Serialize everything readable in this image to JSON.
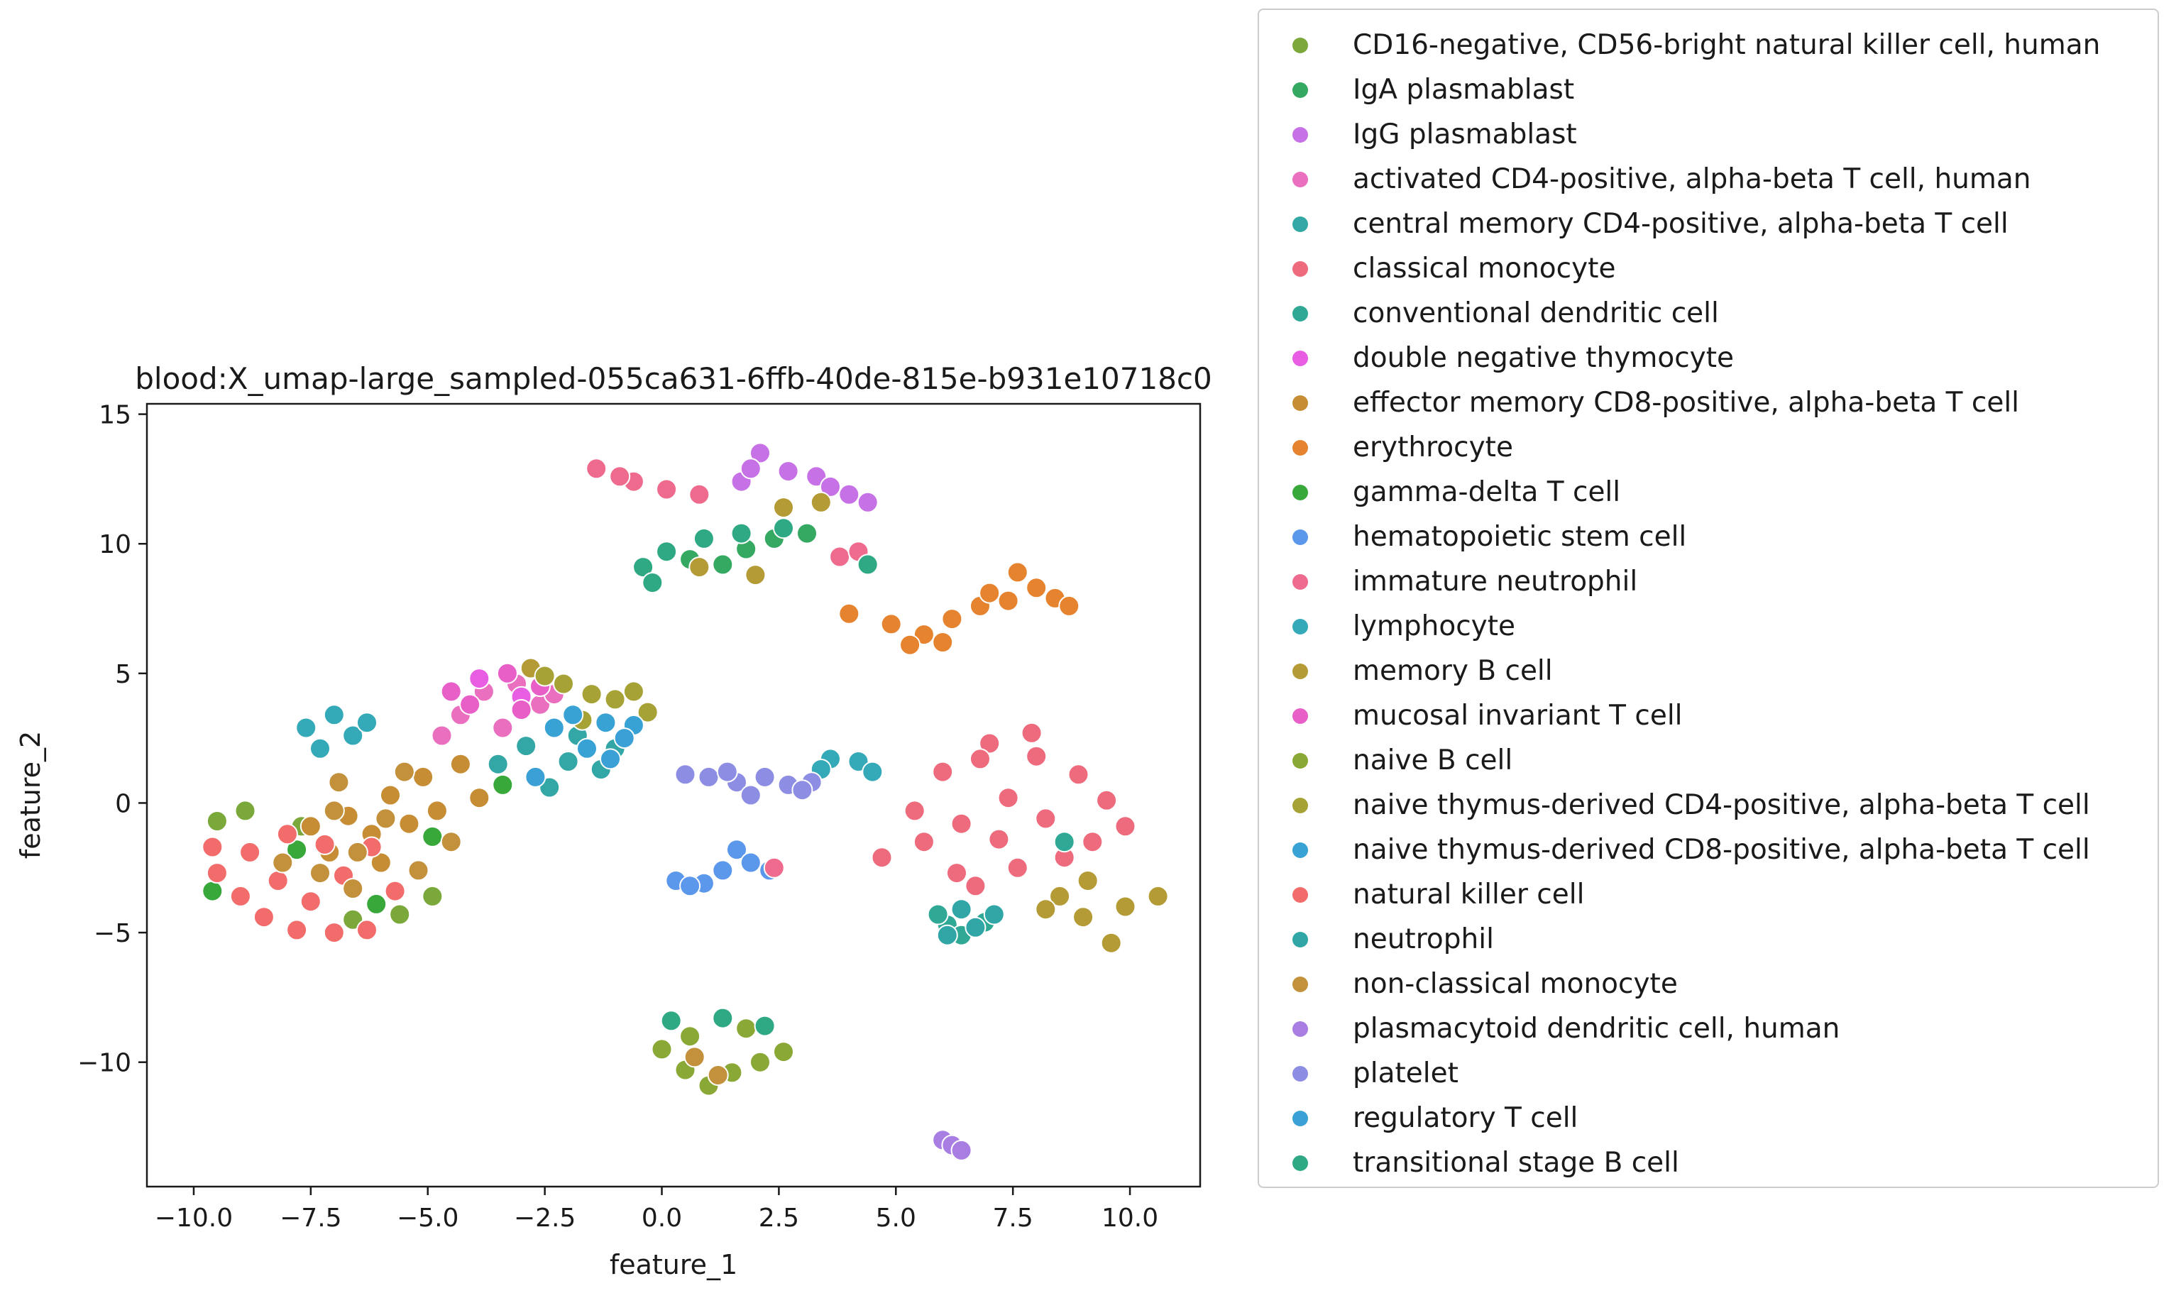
{
  "chart_data": {
    "type": "scatter",
    "title": "blood:X_umap-large_sampled-055ca631-6ffb-40de-815e-b931e10718c0",
    "xlabel": "feature_1",
    "ylabel": "feature_2",
    "xlim": [
      -11,
      11.5
    ],
    "ylim": [
      -14.8,
      15.4
    ],
    "xticks": [
      -10.0,
      -7.5,
      -5.0,
      -2.5,
      0.0,
      2.5,
      5.0,
      7.5,
      10.0
    ],
    "xtick_labels": [
      "−10.0",
      "−7.5",
      "−5.0",
      "−2.5",
      "0.0",
      "2.5",
      "5.0",
      "7.5",
      "10.0"
    ],
    "yticks": [
      -10,
      -5,
      0,
      5,
      10,
      15
    ],
    "ytick_labels": [
      "−10",
      "−5",
      "0",
      "5",
      "10",
      "15"
    ],
    "grid": false,
    "legend_position": "outside-right",
    "series": [
      {
        "name": "CD16-negative, CD56-bright natural killer cell, human",
        "color": "#7aa83a",
        "points": [
          [
            -9.5,
            -0.7
          ],
          [
            -8.9,
            -0.3
          ],
          [
            -7.7,
            -0.9
          ],
          [
            -5.6,
            -4.3
          ],
          [
            -4.9,
            -3.6
          ],
          [
            -6.6,
            -4.5
          ]
        ]
      },
      {
        "name": "IgA plasmablast",
        "color": "#35a862",
        "points": [
          [
            0.6,
            9.4
          ],
          [
            1.3,
            9.2
          ],
          [
            1.8,
            9.8
          ],
          [
            2.4,
            10.2
          ],
          [
            3.1,
            10.4
          ]
        ]
      },
      {
        "name": "IgG plasmablast",
        "color": "#c771e6",
        "points": [
          [
            1.7,
            12.4
          ],
          [
            2.1,
            13.5
          ],
          [
            2.7,
            12.8
          ],
          [
            3.3,
            12.6
          ],
          [
            4.0,
            11.9
          ],
          [
            4.4,
            11.6
          ],
          [
            3.6,
            12.2
          ],
          [
            1.9,
            12.9
          ]
        ]
      },
      {
        "name": "activated CD4-positive, alpha-beta T cell, human",
        "color": "#ea6fbf",
        "points": [
          [
            -3.8,
            4.3
          ],
          [
            -3.1,
            4.6
          ],
          [
            -2.6,
            3.8
          ],
          [
            -4.3,
            3.4
          ],
          [
            -3.4,
            2.9
          ],
          [
            -2.3,
            4.2
          ],
          [
            -4.7,
            2.6
          ]
        ]
      },
      {
        "name": "central memory CD4-positive, alpha-beta T cell",
        "color": "#33a7a6",
        "points": [
          [
            -2.9,
            2.2
          ],
          [
            -2.0,
            1.6
          ],
          [
            -1.3,
            1.3
          ],
          [
            -2.4,
            0.6
          ],
          [
            -1.8,
            2.6
          ],
          [
            -3.5,
            1.5
          ],
          [
            -1.0,
            2.1
          ]
        ]
      },
      {
        "name": "classical monocyte",
        "color": "#ee6b7d",
        "points": [
          [
            6.0,
            1.2
          ],
          [
            7.0,
            2.3
          ],
          [
            8.0,
            1.8
          ],
          [
            8.9,
            1.1
          ],
          [
            9.5,
            0.1
          ],
          [
            7.4,
            0.2
          ],
          [
            6.4,
            -0.8
          ],
          [
            5.6,
            -1.5
          ],
          [
            6.3,
            -2.7
          ],
          [
            7.2,
            -1.4
          ],
          [
            8.2,
            -0.6
          ],
          [
            9.2,
            -1.5
          ],
          [
            5.4,
            -0.3
          ],
          [
            7.9,
            2.7
          ],
          [
            6.7,
            -3.2
          ],
          [
            8.6,
            -2.1
          ],
          [
            4.7,
            -2.1
          ],
          [
            9.9,
            -0.9
          ],
          [
            6.8,
            1.7
          ],
          [
            7.6,
            -2.5
          ]
        ]
      },
      {
        "name": "conventional dendritic cell",
        "color": "#2fa996",
        "points": [
          [
            6.1,
            -4.7
          ],
          [
            6.4,
            -5.1
          ],
          [
            6.9,
            -4.6
          ],
          [
            5.9,
            -4.3
          ],
          [
            8.6,
            -1.5
          ]
        ]
      },
      {
        "name": "double negative thymocyte",
        "color": "#e85ee3",
        "points": [
          [
            -3.9,
            4.8
          ],
          [
            -3.0,
            4.1
          ]
        ]
      },
      {
        "name": "effector memory CD8-positive, alpha-beta T cell",
        "color": "#c68d34",
        "points": [
          [
            -6.7,
            -0.5
          ],
          [
            -5.8,
            0.3
          ],
          [
            -5.1,
            1.0
          ],
          [
            -4.3,
            1.5
          ],
          [
            -6.2,
            -1.2
          ],
          [
            -5.4,
            -0.8
          ],
          [
            -7.1,
            -1.9
          ],
          [
            -4.8,
            -0.3
          ],
          [
            -6.0,
            -2.3
          ],
          [
            -3.9,
            0.2
          ],
          [
            -7.5,
            -0.9
          ]
        ]
      },
      {
        "name": "erythrocyte",
        "color": "#e5832f",
        "points": [
          [
            4.0,
            7.3
          ],
          [
            4.9,
            6.9
          ],
          [
            5.6,
            6.5
          ],
          [
            6.2,
            7.1
          ],
          [
            6.8,
            7.6
          ],
          [
            7.4,
            7.8
          ],
          [
            8.0,
            8.3
          ],
          [
            7.6,
            8.9
          ],
          [
            8.4,
            7.9
          ],
          [
            7.0,
            8.1
          ],
          [
            5.3,
            6.1
          ],
          [
            6.0,
            6.2
          ],
          [
            8.7,
            7.6
          ]
        ]
      },
      {
        "name": "gamma-delta T cell",
        "color": "#38a83a",
        "points": [
          [
            -7.8,
            -1.8
          ],
          [
            -6.1,
            -3.9
          ],
          [
            -4.9,
            -1.3
          ],
          [
            -3.4,
            0.7
          ],
          [
            -9.6,
            -3.4
          ]
        ]
      },
      {
        "name": "hematopoietic stem cell",
        "color": "#5b97ea",
        "points": [
          [
            0.3,
            -3.0
          ],
          [
            0.9,
            -3.1
          ],
          [
            1.3,
            -2.6
          ],
          [
            1.6,
            -1.8
          ],
          [
            1.9,
            -2.3
          ],
          [
            2.3,
            -2.6
          ],
          [
            0.6,
            -3.2
          ]
        ]
      },
      {
        "name": "immature neutrophil",
        "color": "#ef6b8e",
        "points": [
          [
            -1.4,
            12.9
          ],
          [
            -0.6,
            12.4
          ],
          [
            0.1,
            12.1
          ],
          [
            0.8,
            11.9
          ],
          [
            -0.9,
            12.6
          ],
          [
            2.4,
            -2.5
          ],
          [
            3.8,
            9.5
          ],
          [
            4.2,
            9.7
          ]
        ]
      },
      {
        "name": "lymphocyte",
        "color": "#34a9b7",
        "points": [
          [
            -7.6,
            2.9
          ],
          [
            -7.0,
            3.4
          ],
          [
            -6.6,
            2.6
          ],
          [
            -7.3,
            2.1
          ],
          [
            -6.3,
            3.1
          ],
          [
            3.6,
            1.7
          ],
          [
            4.2,
            1.6
          ],
          [
            4.5,
            1.2
          ],
          [
            3.4,
            1.3
          ]
        ]
      },
      {
        "name": "memory B cell",
        "color": "#b49b35",
        "points": [
          [
            8.5,
            -3.6
          ],
          [
            9.0,
            -4.4
          ],
          [
            9.6,
            -5.4
          ],
          [
            9.1,
            -3.0
          ],
          [
            8.2,
            -4.1
          ],
          [
            9.9,
            -4.0
          ],
          [
            10.6,
            -3.6
          ],
          [
            0.8,
            9.1
          ],
          [
            2.0,
            8.8
          ],
          [
            2.6,
            11.4
          ],
          [
            3.4,
            11.6
          ],
          [
            -2.8,
            5.2
          ]
        ]
      },
      {
        "name": "mucosal invariant T cell",
        "color": "#e95fc8",
        "points": [
          [
            -4.5,
            4.3
          ],
          [
            -3.3,
            5.0
          ],
          [
            -2.6,
            4.5
          ],
          [
            -4.1,
            3.8
          ],
          [
            -3.0,
            3.6
          ]
        ]
      },
      {
        "name": "naive B cell",
        "color": "#8aa836",
        "points": [
          [
            0.0,
            -9.5
          ],
          [
            0.5,
            -10.3
          ],
          [
            1.0,
            -10.9
          ],
          [
            1.5,
            -10.4
          ],
          [
            2.1,
            -10.0
          ],
          [
            2.6,
            -9.6
          ],
          [
            0.6,
            -9.0
          ],
          [
            1.8,
            -8.7
          ]
        ]
      },
      {
        "name": "naive thymus-derived CD4-positive, alpha-beta T cell",
        "color": "#a6a235",
        "points": [
          [
            -2.1,
            4.6
          ],
          [
            -1.5,
            4.2
          ],
          [
            -1.0,
            4.0
          ],
          [
            -0.6,
            4.3
          ],
          [
            -0.3,
            3.5
          ],
          [
            -1.7,
            3.2
          ],
          [
            -2.5,
            4.9
          ]
        ]
      },
      {
        "name": "naive thymus-derived CD8-positive, alpha-beta T cell",
        "color": "#38a2d5",
        "points": [
          [
            -1.9,
            3.4
          ],
          [
            -1.2,
            3.1
          ],
          [
            -1.6,
            2.1
          ],
          [
            -0.6,
            3.0
          ],
          [
            -2.3,
            2.9
          ]
        ]
      },
      {
        "name": "natural killer cell",
        "color": "#f26c6b",
        "points": [
          [
            -9.5,
            -2.7
          ],
          [
            -9.0,
            -3.6
          ],
          [
            -8.5,
            -4.4
          ],
          [
            -7.8,
            -4.9
          ],
          [
            -7.0,
            -5.0
          ],
          [
            -6.3,
            -4.9
          ],
          [
            -8.8,
            -1.9
          ],
          [
            -8.2,
            -3.0
          ],
          [
            -7.5,
            -3.8
          ],
          [
            -6.8,
            -2.8
          ],
          [
            -9.6,
            -1.7
          ],
          [
            -8.0,
            -1.2
          ],
          [
            -6.2,
            -1.7
          ],
          [
            -5.7,
            -3.4
          ],
          [
            -7.2,
            -1.6
          ]
        ]
      },
      {
        "name": "neutrophil",
        "color": "#30a7a6",
        "points": [
          [
            6.1,
            -5.1
          ],
          [
            6.7,
            -4.8
          ],
          [
            7.1,
            -4.3
          ],
          [
            6.4,
            -4.1
          ]
        ]
      },
      {
        "name": "non-classical monocyte",
        "color": "#c3903b",
        "points": [
          [
            -8.1,
            -2.3
          ],
          [
            -7.3,
            -2.7
          ],
          [
            -6.5,
            -1.9
          ],
          [
            -5.9,
            -0.6
          ],
          [
            -7.0,
            -0.3
          ],
          [
            -5.2,
            -2.6
          ],
          [
            -6.6,
            -3.3
          ],
          [
            -4.5,
            -1.5
          ],
          [
            -6.9,
            0.8
          ],
          [
            -5.5,
            1.2
          ],
          [
            0.7,
            -9.8
          ],
          [
            1.2,
            -10.5
          ]
        ]
      },
      {
        "name": "plasmacytoid dendritic cell, human",
        "color": "#a87ee3",
        "points": [
          [
            6.0,
            -13.0
          ],
          [
            6.2,
            -13.2
          ],
          [
            6.4,
            -13.4
          ]
        ]
      },
      {
        "name": "platelet",
        "color": "#8d8ee3",
        "points": [
          [
            1.0,
            1.0
          ],
          [
            1.6,
            0.8
          ],
          [
            2.2,
            1.0
          ],
          [
            2.7,
            0.7
          ],
          [
            3.2,
            0.8
          ],
          [
            0.5,
            1.1
          ],
          [
            1.9,
            0.3
          ],
          [
            1.4,
            1.2
          ],
          [
            3.0,
            0.5
          ]
        ]
      },
      {
        "name": "regulatory T cell",
        "color": "#3aa0d6",
        "points": [
          [
            -1.1,
            1.7
          ],
          [
            -0.8,
            2.5
          ],
          [
            -2.7,
            1.0
          ]
        ]
      },
      {
        "name": "transitional stage B cell",
        "color": "#2fa984",
        "points": [
          [
            -0.4,
            9.1
          ],
          [
            0.1,
            9.7
          ],
          [
            0.9,
            10.2
          ],
          [
            1.7,
            10.4
          ],
          [
            2.6,
            10.6
          ],
          [
            -0.2,
            8.5
          ],
          [
            1.3,
            -8.3
          ],
          [
            2.2,
            -8.6
          ],
          [
            0.2,
            -8.4
          ],
          [
            4.4,
            9.2
          ]
        ]
      }
    ]
  }
}
